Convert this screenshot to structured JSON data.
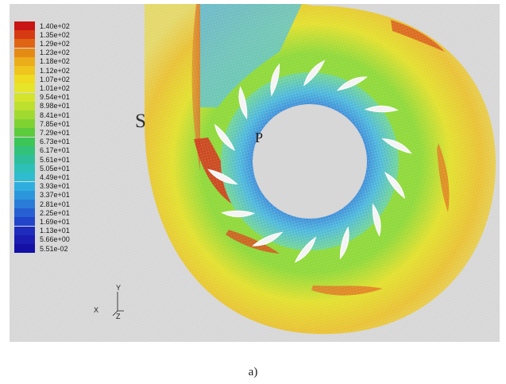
{
  "caption": "a)",
  "labels": {
    "s": "S",
    "p": "P"
  },
  "axis_triad": {
    "y": "Y",
    "x": "X",
    "z": "Z"
  },
  "legend": {
    "entries": [
      {
        "label": "1.40e+02",
        "color": "#c81414"
      },
      {
        "label": "1.35e+02",
        "color": "#d63a12"
      },
      {
        "label": "1.29e+02",
        "color": "#df6514"
      },
      {
        "label": "1.23e+02",
        "color": "#e68a16"
      },
      {
        "label": "1.18e+02",
        "color": "#ecad1a"
      },
      {
        "label": "1.12e+02",
        "color": "#efc51e"
      },
      {
        "label": "1.07e+02",
        "color": "#eedb22"
      },
      {
        "label": "1.01e+02",
        "color": "#e7e52a"
      },
      {
        "label": "9.54e+01",
        "color": "#d4e42c"
      },
      {
        "label": "8.98e+01",
        "color": "#bde02e"
      },
      {
        "label": "8.41e+01",
        "color": "#a0da30"
      },
      {
        "label": "7.85e+01",
        "color": "#7fd232"
      },
      {
        "label": "7.29e+01",
        "color": "#5ccb3c"
      },
      {
        "label": "6.73e+01",
        "color": "#3ec557"
      },
      {
        "label": "6.17e+01",
        "color": "#33c27a"
      },
      {
        "label": "5.61e+01",
        "color": "#2ebf9a"
      },
      {
        "label": "5.05e+01",
        "color": "#2cc0b8"
      },
      {
        "label": "4.49e+01",
        "color": "#2ebcd0"
      },
      {
        "label": "3.93e+01",
        "color": "#2eaede"
      },
      {
        "label": "3.37e+01",
        "color": "#2c96dc"
      },
      {
        "label": "2.81e+01",
        "color": "#2a7cd8"
      },
      {
        "label": "2.25e+01",
        "color": "#2660d2"
      },
      {
        "label": "1.69e+01",
        "color": "#2244c8"
      },
      {
        "label": "1.13e+01",
        "color": "#1e2cbc"
      },
      {
        "label": "5.66e+00",
        "color": "#1a1cb2"
      },
      {
        "label": "5.51e-02",
        "color": "#1410a6"
      }
    ]
  },
  "colors": {
    "background": "#d7d7d7",
    "volute_outer": "#e6d74a",
    "volute_hot": "#d23a1e",
    "inner_mesh": "#55c8d0",
    "hole": "#d7d7d7"
  }
}
